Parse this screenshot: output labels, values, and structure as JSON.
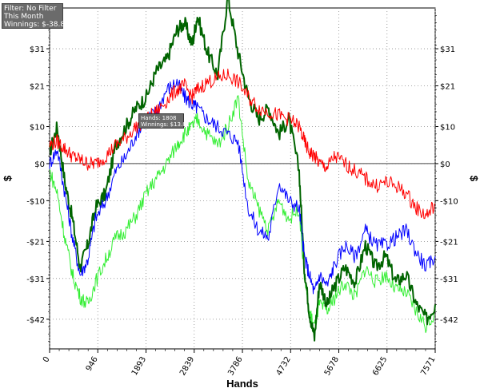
{
  "filter_box": {
    "filter": "Filter: No Filter",
    "period": "This Month",
    "winnings": "Winnings: $-38.86"
  },
  "tooltip": {
    "hands": "Hands: 1808",
    "winnings": "Winnings: $13.81"
  },
  "chart_data": {
    "type": "line",
    "title": "",
    "xlabel": "Hands",
    "ylabel": "$",
    "xlim": [
      0,
      7571
    ],
    "ylim": [
      -50,
      42
    ],
    "x_ticks": [
      0,
      946,
      1893,
      2839,
      3786,
      4732,
      5678,
      6625,
      7571
    ],
    "y_ticks": [
      31,
      21,
      10,
      0,
      -10,
      -21,
      -31,
      -42
    ],
    "y_tick_labels": [
      "$31",
      "$21",
      "$10",
      "$0",
      "-$10",
      "-$21",
      "-$31",
      "-$42"
    ],
    "grid": true,
    "series": [
      {
        "color": "#006400",
        "x": [
          0,
          150,
          300,
          450,
          600,
          750,
          900,
          1100,
          1300,
          1500,
          1700,
          1900,
          2100,
          2300,
          2500,
          2650,
          2800,
          2900,
          3100,
          3300,
          3500,
          3700,
          3900,
          4100,
          4300,
          4500,
          4700,
          4900,
          5000,
          5100,
          5200,
          5300,
          5450,
          5600,
          5800,
          6000,
          6200,
          6400,
          6600,
          6800,
          7000,
          7200,
          7400,
          7571
        ],
        "values": [
          3,
          10,
          -5,
          -15,
          -28,
          -22,
          -12,
          -8,
          5,
          10,
          15,
          18,
          25,
          28,
          36,
          38,
          32,
          40,
          30,
          24,
          45,
          30,
          18,
          12,
          15,
          8,
          12,
          -2,
          -28,
          -40,
          -47,
          -32,
          -38,
          -33,
          -28,
          -32,
          -22,
          -28,
          -25,
          -32,
          -30,
          -38,
          -42,
          -38
        ]
      },
      {
        "color": "#0000ff",
        "x": [
          0,
          150,
          300,
          450,
          600,
          750,
          900,
          1100,
          1300,
          1500,
          1700,
          1900,
          2100,
          2300,
          2500,
          2650,
          2800,
          2900,
          3100,
          3300,
          3500,
          3700,
          3900,
          4100,
          4300,
          4500,
          4700,
          4900,
          5000,
          5100,
          5200,
          5300,
          5450,
          5600,
          5800,
          6000,
          6200,
          6400,
          6600,
          6800,
          7000,
          7200,
          7400,
          7571
        ],
        "values": [
          0,
          4,
          -8,
          -20,
          -30,
          -26,
          -15,
          -10,
          -2,
          2,
          8,
          12,
          14,
          20,
          22,
          18,
          16,
          15,
          12,
          10,
          8,
          6,
          -12,
          -18,
          -20,
          -5,
          -10,
          -12,
          -25,
          -30,
          -35,
          -30,
          -33,
          -27,
          -22,
          -25,
          -18,
          -22,
          -22,
          -20,
          -18,
          -24,
          -28,
          -25
        ]
      },
      {
        "color": "#ff0000",
        "x": [
          0,
          150,
          300,
          450,
          600,
          750,
          900,
          1100,
          1300,
          1500,
          1700,
          1900,
          2100,
          2300,
          2500,
          2650,
          2800,
          2900,
          3100,
          3300,
          3500,
          3700,
          3900,
          4100,
          4300,
          4500,
          4700,
          4900,
          5000,
          5100,
          5200,
          5300,
          5450,
          5600,
          5800,
          6000,
          6200,
          6400,
          6600,
          6800,
          7000,
          7200,
          7400,
          7571
        ],
        "values": [
          5,
          6,
          4,
          2,
          1,
          0,
          0,
          2,
          5,
          7,
          10,
          12,
          14,
          17,
          20,
          21,
          18,
          20,
          22,
          23,
          24,
          22,
          18,
          15,
          14,
          13,
          12,
          10,
          6,
          3,
          2,
          0,
          -1,
          2,
          0,
          -2,
          -4,
          -6,
          -5,
          -6,
          -8,
          -12,
          -14,
          -11
        ]
      },
      {
        "color": "#33ee33",
        "x": [
          0,
          150,
          300,
          450,
          600,
          750,
          900,
          1100,
          1300,
          1500,
          1700,
          1900,
          2100,
          2300,
          2500,
          2650,
          2800,
          2900,
          3100,
          3300,
          3500,
          3700,
          3900,
          4100,
          4300,
          4500,
          4700,
          4900,
          5000,
          5100,
          5200,
          5300,
          5450,
          5600,
          5800,
          6000,
          6200,
          6400,
          6600,
          6800,
          7000,
          7200,
          7400,
          7571
        ],
        "values": [
          -2,
          -8,
          -20,
          -30,
          -36,
          -38,
          -32,
          -26,
          -20,
          -18,
          -14,
          -8,
          -4,
          0,
          5,
          8,
          10,
          12,
          8,
          5,
          10,
          18,
          -5,
          -12,
          -18,
          -10,
          -15,
          -12,
          -30,
          -40,
          -44,
          -38,
          -40,
          -36,
          -32,
          -36,
          -28,
          -32,
          -30,
          -34,
          -35,
          -40,
          -44,
          -40
        ]
      }
    ]
  }
}
